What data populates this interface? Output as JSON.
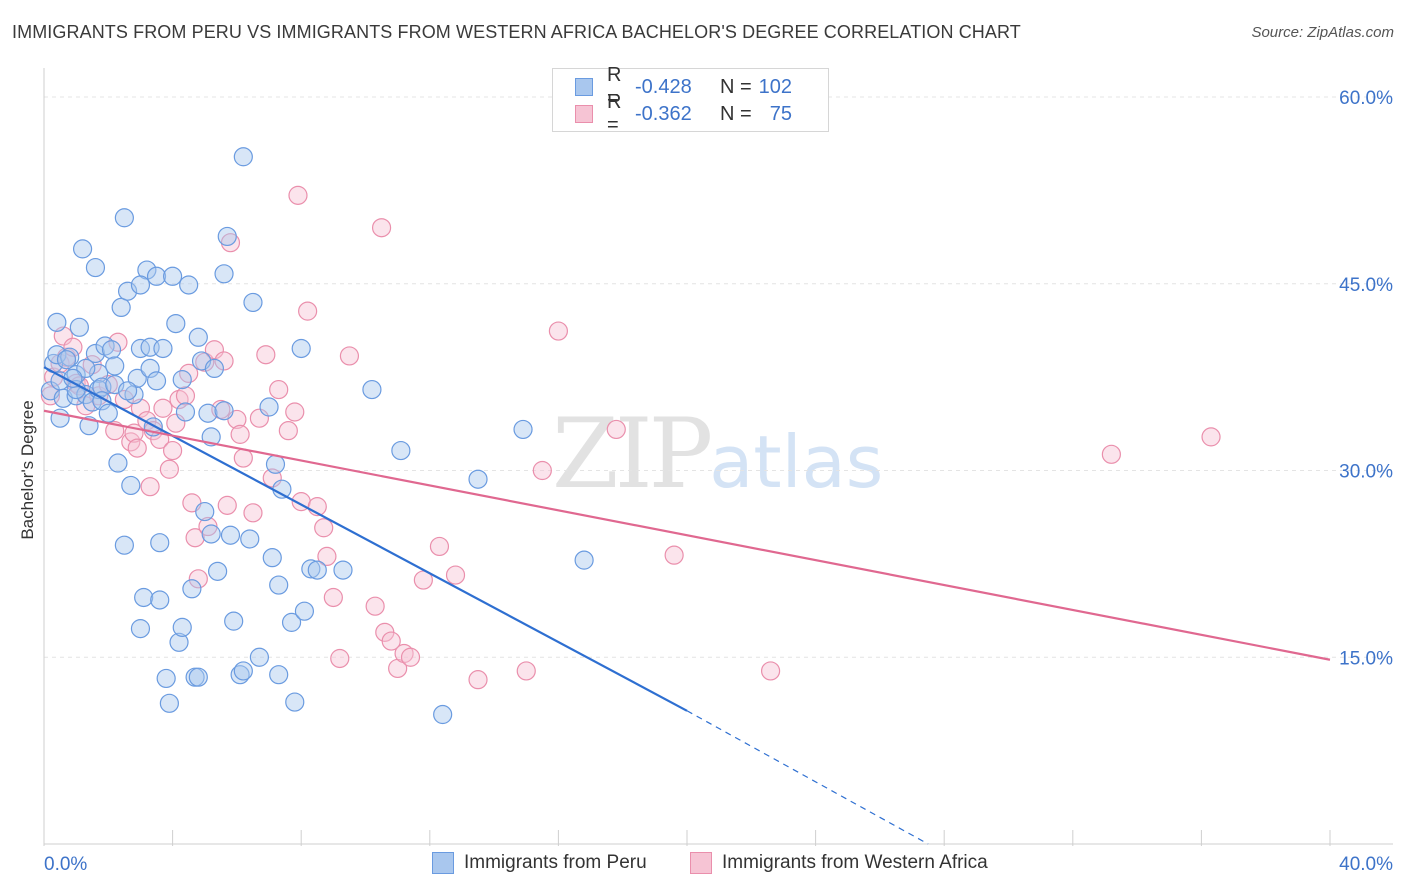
{
  "title": "IMMIGRANTS FROM PERU VS IMMIGRANTS FROM WESTERN AFRICA BACHELOR'S DEGREE CORRELATION CHART",
  "source": "Source: ZipAtlas.com",
  "watermark": {
    "zip": "ZIP",
    "atlas": "atlas"
  },
  "legend": {
    "rows": [
      {
        "r_label": "R =",
        "r_value": "-0.428",
        "n_label": "N =",
        "n_value": "102"
      },
      {
        "r_label": "R =",
        "r_value": "-0.362",
        "n_label": "N =",
        "n_value": "75"
      }
    ]
  },
  "bottom_legend": {
    "peru": "Immigrants from Peru",
    "wafrica": "Immigrants from Western Africa"
  },
  "colors": {
    "peru_fill": "#a9c7ee",
    "peru_stroke": "#6a9be0",
    "peru_line": "#2e6fd1",
    "wafrica_fill": "#f6c4d4",
    "wafrica_stroke": "#ea8fac",
    "wafrica_line": "#e06890",
    "grid": "#e4e4e4",
    "tick_text": "#3d73c9"
  },
  "chart_data": {
    "type": "scatter",
    "title": "IMMIGRANTS FROM PERU VS IMMIGRANTS FROM WESTERN AFRICA BACHELOR'S DEGREE CORRELATION CHART",
    "xlabel": "",
    "ylabel": "Bachelor's Degree",
    "xlim": [
      0,
      40
    ],
    "ylim": [
      0,
      60
    ],
    "x_tick_labels": [
      "0.0%",
      "40.0%"
    ],
    "y_ticks": [
      15,
      30,
      45,
      60
    ],
    "y_tick_labels": [
      "15.0%",
      "30.0%",
      "45.0%",
      "60.0%"
    ],
    "grid": true,
    "legend_position": "top-center",
    "series": [
      {
        "name": "Immigrants from Peru",
        "r": -0.428,
        "n": 102,
        "trend": {
          "x_start": 0,
          "y_start": 38.3,
          "x_end": 20,
          "y_end": 10.7,
          "x_dash_end": 27.5,
          "y_dash_end": 0
        },
        "points": [
          [
            0.2,
            36.4
          ],
          [
            0.3,
            38.6
          ],
          [
            0.4,
            39.3
          ],
          [
            0.5,
            37.2
          ],
          [
            0.6,
            35.8
          ],
          [
            0.5,
            34.2
          ],
          [
            0.4,
            41.9
          ],
          [
            0.8,
            39.1
          ],
          [
            1.0,
            36.0
          ],
          [
            1.1,
            41.5
          ],
          [
            1.0,
            37.7
          ],
          [
            1.2,
            47.8
          ],
          [
            1.3,
            36.1
          ],
          [
            1.4,
            33.6
          ],
          [
            1.5,
            35.5
          ],
          [
            1.6,
            39.4
          ],
          [
            1.7,
            37.8
          ],
          [
            1.6,
            46.3
          ],
          [
            1.7,
            36.5
          ],
          [
            1.8,
            36.7
          ],
          [
            1.8,
            35.6
          ],
          [
            2.0,
            34.6
          ],
          [
            1.9,
            40.0
          ],
          [
            2.1,
            39.7
          ],
          [
            2.2,
            38.4
          ],
          [
            2.2,
            36.9
          ],
          [
            2.3,
            30.6
          ],
          [
            2.4,
            43.1
          ],
          [
            2.5,
            24.0
          ],
          [
            2.5,
            50.3
          ],
          [
            2.6,
            44.4
          ],
          [
            2.7,
            28.8
          ],
          [
            2.8,
            36.1
          ],
          [
            2.9,
            37.4
          ],
          [
            3.0,
            17.3
          ],
          [
            3.0,
            39.8
          ],
          [
            3.1,
            19.8
          ],
          [
            3.2,
            46.1
          ],
          [
            3.3,
            39.9
          ],
          [
            3.3,
            38.2
          ],
          [
            3.4,
            33.5
          ],
          [
            3.5,
            37.2
          ],
          [
            3.5,
            45.6
          ],
          [
            3.6,
            19.6
          ],
          [
            3.6,
            24.2
          ],
          [
            3.7,
            39.8
          ],
          [
            3.8,
            13.3
          ],
          [
            3.9,
            11.3
          ],
          [
            4.0,
            45.6
          ],
          [
            4.1,
            41.8
          ],
          [
            4.2,
            16.2
          ],
          [
            4.3,
            37.3
          ],
          [
            4.3,
            17.4
          ],
          [
            4.4,
            34.7
          ],
          [
            4.5,
            44.9
          ],
          [
            4.6,
            20.5
          ],
          [
            4.7,
            13.4
          ],
          [
            4.8,
            13.4
          ],
          [
            4.8,
            40.7
          ],
          [
            4.9,
            38.8
          ],
          [
            5.0,
            26.7
          ],
          [
            5.1,
            34.6
          ],
          [
            5.2,
            32.7
          ],
          [
            5.2,
            24.9
          ],
          [
            5.3,
            38.2
          ],
          [
            5.4,
            21.9
          ],
          [
            5.6,
            45.8
          ],
          [
            5.7,
            48.8
          ],
          [
            5.8,
            24.8
          ],
          [
            5.9,
            17.9
          ],
          [
            6.1,
            13.6
          ],
          [
            6.2,
            55.2
          ],
          [
            6.2,
            13.9
          ],
          [
            6.5,
            43.5
          ],
          [
            6.4,
            24.5
          ],
          [
            6.7,
            15.0
          ],
          [
            7.0,
            35.1
          ],
          [
            7.1,
            23.0
          ],
          [
            7.2,
            30.5
          ],
          [
            7.3,
            13.6
          ],
          [
            7.3,
            20.8
          ],
          [
            7.4,
            28.5
          ],
          [
            7.7,
            17.8
          ],
          [
            7.8,
            11.4
          ],
          [
            8.0,
            39.8
          ],
          [
            8.1,
            18.7
          ],
          [
            8.3,
            22.1
          ],
          [
            8.5,
            22.0
          ],
          [
            9.3,
            22.0
          ],
          [
            10.2,
            36.5
          ],
          [
            11.1,
            31.6
          ],
          [
            12.4,
            10.4
          ],
          [
            13.5,
            29.3
          ],
          [
            14.9,
            33.3
          ],
          [
            16.8,
            22.8
          ],
          [
            1.3,
            38.2
          ],
          [
            2.6,
            36.4
          ],
          [
            1.0,
            36.5
          ],
          [
            0.7,
            38.9
          ],
          [
            0.9,
            37.4
          ],
          [
            3.0,
            44.9
          ],
          [
            5.6,
            34.8
          ]
        ]
      },
      {
        "name": "Immigrants from Western Africa",
        "r": -0.362,
        "n": 75,
        "trend": {
          "x_start": 0,
          "y_start": 34.8,
          "x_end": 40,
          "y_end": 14.8
        },
        "points": [
          [
            0.2,
            36.0
          ],
          [
            0.3,
            37.5
          ],
          [
            0.5,
            38.6
          ],
          [
            0.6,
            40.8
          ],
          [
            0.7,
            39.1
          ],
          [
            0.9,
            39.9
          ],
          [
            1.0,
            37.0
          ],
          [
            1.1,
            36.8
          ],
          [
            1.3,
            35.2
          ],
          [
            1.5,
            38.5
          ],
          [
            1.7,
            36.0
          ],
          [
            2.0,
            36.9
          ],
          [
            2.2,
            33.2
          ],
          [
            2.3,
            40.3
          ],
          [
            2.5,
            35.7
          ],
          [
            2.7,
            32.3
          ],
          [
            2.8,
            33.0
          ],
          [
            2.9,
            31.8
          ],
          [
            3.0,
            35.0
          ],
          [
            3.2,
            34.0
          ],
          [
            3.3,
            28.7
          ],
          [
            3.4,
            33.2
          ],
          [
            3.6,
            32.5
          ],
          [
            3.7,
            35.0
          ],
          [
            3.9,
            30.1
          ],
          [
            4.0,
            31.6
          ],
          [
            4.1,
            33.8
          ],
          [
            4.2,
            35.7
          ],
          [
            4.4,
            36.0
          ],
          [
            4.5,
            37.8
          ],
          [
            4.6,
            27.4
          ],
          [
            4.7,
            24.6
          ],
          [
            4.8,
            21.3
          ],
          [
            5.0,
            38.7
          ],
          [
            5.1,
            25.5
          ],
          [
            5.3,
            39.7
          ],
          [
            5.5,
            34.9
          ],
          [
            5.6,
            38.8
          ],
          [
            5.7,
            27.2
          ],
          [
            5.8,
            48.3
          ],
          [
            6.0,
            34.1
          ],
          [
            6.1,
            32.9
          ],
          [
            6.2,
            31.0
          ],
          [
            6.5,
            26.6
          ],
          [
            6.7,
            34.2
          ],
          [
            6.9,
            39.3
          ],
          [
            7.1,
            29.4
          ],
          [
            7.3,
            36.5
          ],
          [
            7.6,
            33.2
          ],
          [
            7.8,
            34.7
          ],
          [
            7.9,
            52.1
          ],
          [
            8.0,
            27.5
          ],
          [
            8.2,
            42.8
          ],
          [
            8.5,
            27.1
          ],
          [
            8.7,
            25.4
          ],
          [
            8.8,
            23.1
          ],
          [
            9.0,
            19.8
          ],
          [
            9.2,
            14.9
          ],
          [
            9.5,
            39.2
          ],
          [
            10.3,
            19.1
          ],
          [
            10.6,
            17.0
          ],
          [
            10.8,
            16.3
          ],
          [
            11.0,
            14.1
          ],
          [
            11.2,
            15.3
          ],
          [
            11.4,
            15.0
          ],
          [
            11.8,
            21.2
          ],
          [
            12.3,
            23.9
          ],
          [
            12.8,
            21.6
          ],
          [
            13.5,
            13.2
          ],
          [
            15.0,
            13.9
          ],
          [
            15.5,
            30.0
          ],
          [
            16.0,
            41.2
          ],
          [
            17.8,
            33.3
          ],
          [
            19.6,
            23.2
          ],
          [
            22.6,
            13.9
          ]
        ],
        "extra_points": [
          [
            10.5,
            49.5
          ],
          [
            33.2,
            31.3
          ],
          [
            36.3,
            32.7
          ]
        ]
      }
    ]
  }
}
